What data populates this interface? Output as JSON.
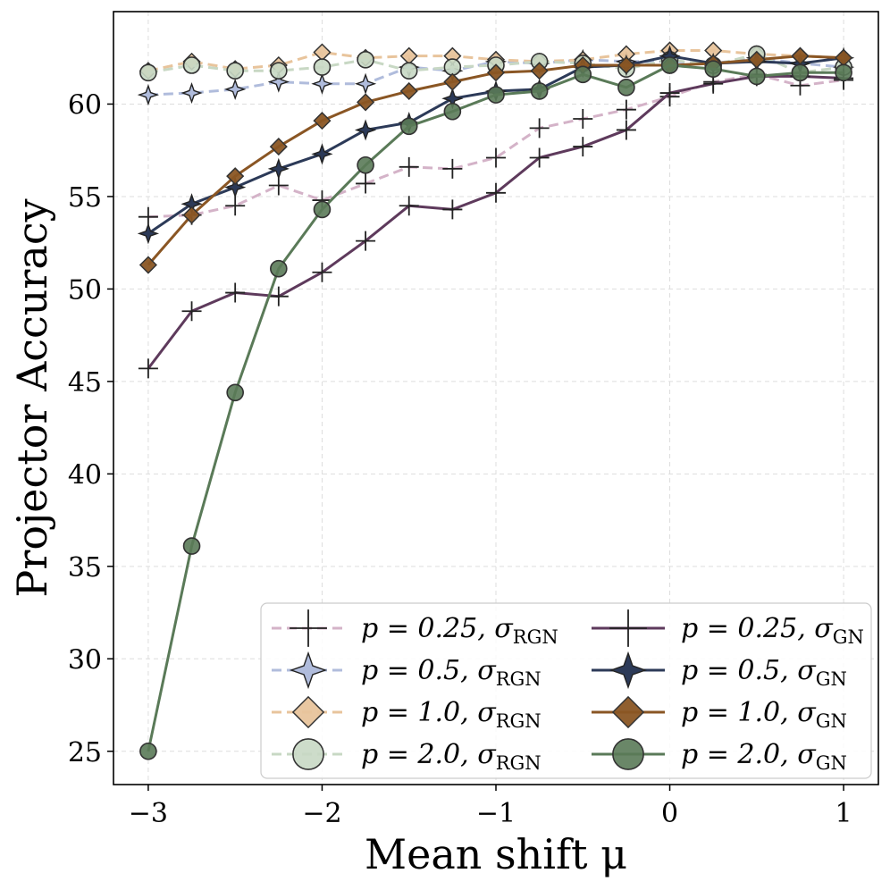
{
  "chart_data": {
    "type": "line",
    "title": "",
    "xlabel": "Mean shift μ",
    "ylabel": "Projector Accuracy",
    "xlim": [
      -3.2,
      1.2
    ],
    "ylim": [
      23.2,
      65.0
    ],
    "xticks": [
      -3,
      -2,
      -1,
      0,
      1
    ],
    "xtick_labels": [
      "−3",
      "−2",
      "−1",
      "0",
      "1"
    ],
    "yticks": [
      25,
      30,
      35,
      40,
      45,
      50,
      55,
      60
    ],
    "ytick_labels": [
      "25",
      "30",
      "35",
      "40",
      "45",
      "50",
      "55",
      "60"
    ],
    "grid": true,
    "legend_position": "bottom-right",
    "x": [
      -3,
      -2.75,
      -2.5,
      -2.25,
      -2,
      -1.75,
      -1.5,
      -1.25,
      -1,
      -0.75,
      -0.5,
      -0.25,
      0,
      0.25,
      0.5,
      0.75,
      1
    ],
    "series": [
      {
        "name": "p=0.25, σRGN",
        "legend_main": "p = 0.25,  σ",
        "legend_sub": "RGN",
        "style": "dashed",
        "marker": "plus",
        "color": "#d4b3c8",
        "values": [
          53.9,
          54.0,
          54.5,
          55.6,
          54.8,
          55.7,
          56.6,
          56.5,
          57.1,
          58.7,
          59.2,
          59.7,
          60.4,
          61.2,
          61.6,
          61.0,
          61.3
        ]
      },
      {
        "name": "p=0.5, σRGN",
        "legend_main": "p = 0.5,  σ",
        "legend_sub": "RGN",
        "style": "dashed",
        "marker": "star4",
        "color": "#b0bcdc",
        "values": [
          60.5,
          60.6,
          60.8,
          61.2,
          61.1,
          61.1,
          62.0,
          61.8,
          62.3,
          62.2,
          62.4,
          62.3,
          62.3,
          62.2,
          62.5,
          62.2,
          62.0
        ]
      },
      {
        "name": "p=1.0, σRGN",
        "legend_main": "p = 1.0,  σ",
        "legend_sub": "RGN",
        "style": "dashed",
        "marker": "diamond",
        "color": "#e8c49c",
        "values": [
          61.8,
          62.3,
          61.9,
          62.1,
          62.8,
          62.5,
          62.6,
          62.6,
          62.4,
          62.3,
          62.4,
          62.7,
          62.9,
          62.9,
          62.7,
          62.6,
          62.5
        ]
      },
      {
        "name": "p=2.0, σRGN",
        "legend_main": "p = 2.0,  σ",
        "legend_sub": "RGN",
        "style": "dashed",
        "marker": "circle",
        "color": "#c8d8c4",
        "values": [
          61.7,
          62.1,
          61.8,
          61.8,
          62.0,
          62.4,
          61.8,
          62.0,
          62.1,
          62.3,
          62.2,
          61.9,
          62.4,
          62.1,
          62.7,
          61.7,
          62.0
        ]
      },
      {
        "name": "p=0.25, σGN",
        "legend_main": "p = 0.25,  σ",
        "legend_sub": "GN",
        "style": "solid",
        "marker": "plus",
        "color": "#5e3a5c",
        "values": [
          45.7,
          48.8,
          49.8,
          49.6,
          50.9,
          52.6,
          54.5,
          54.3,
          55.2,
          57.1,
          57.7,
          58.6,
          60.6,
          61.1,
          61.5,
          61.5,
          61.4
        ]
      },
      {
        "name": "p=0.5, σGN",
        "legend_main": "p = 0.5,  σ",
        "legend_sub": "GN",
        "style": "solid",
        "marker": "star4",
        "color": "#2c3a58",
        "values": [
          53.0,
          54.6,
          55.5,
          56.5,
          57.3,
          58.6,
          59.0,
          60.3,
          60.7,
          60.8,
          62.0,
          62.1,
          62.6,
          62.2,
          62.3,
          62.2,
          62.5
        ]
      },
      {
        "name": "p=1.0, σGN",
        "legend_main": "p = 1.0,  σ",
        "legend_sub": "GN",
        "style": "solid",
        "marker": "diamond",
        "color": "#8a5624",
        "values": [
          51.3,
          54.0,
          56.1,
          57.7,
          59.1,
          60.1,
          60.7,
          61.2,
          61.7,
          61.8,
          62.1,
          62.1,
          62.1,
          62.2,
          62.4,
          62.6,
          62.5
        ]
      },
      {
        "name": "p=2.0, σGN",
        "legend_main": "p = 2.0,  σ",
        "legend_sub": "GN",
        "style": "solid",
        "marker": "circle",
        "color": "#5a7a58",
        "values": [
          25.0,
          36.1,
          44.4,
          51.1,
          54.3,
          56.7,
          58.8,
          59.6,
          60.5,
          60.7,
          61.6,
          60.9,
          62.1,
          61.9,
          61.5,
          61.7,
          61.7
        ]
      }
    ]
  }
}
